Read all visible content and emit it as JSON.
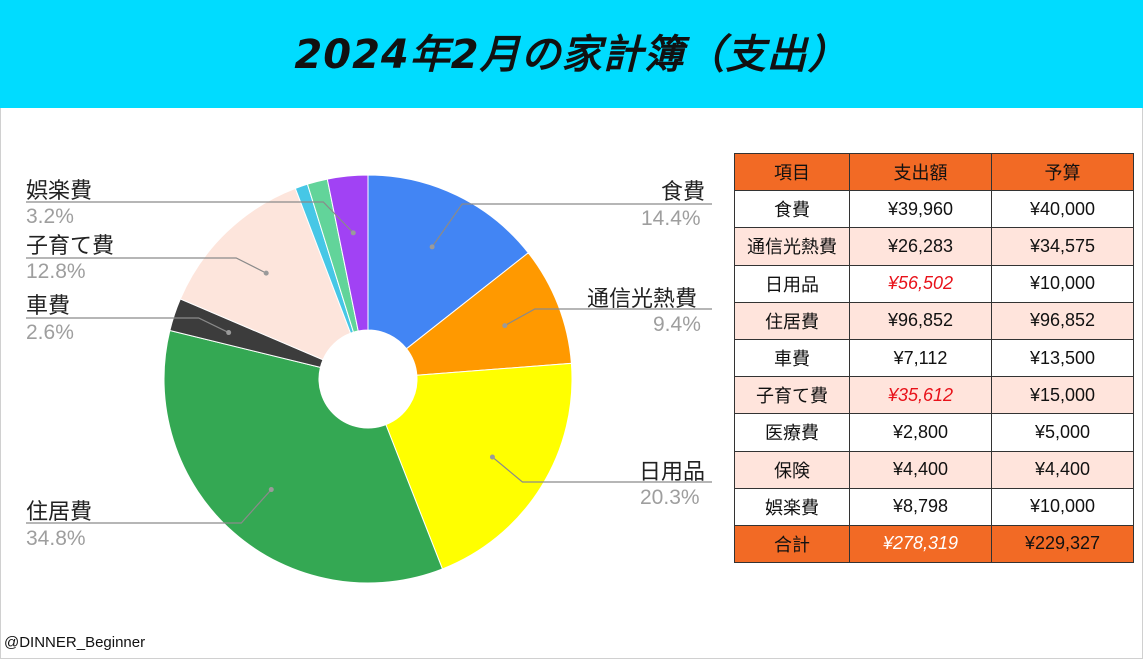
{
  "title": "2024年2月の家計簿（支出）",
  "credit": "@DINNER_Beginner",
  "chart_data": {
    "type": "pie",
    "donut": true,
    "legend": "outside-labels",
    "slices": [
      {
        "name": "食費",
        "value": 14.4,
        "label": "14.4%",
        "color": "#4285f4"
      },
      {
        "name": "通信光熱費",
        "value": 9.4,
        "label": "9.4%",
        "color": "#ff9900"
      },
      {
        "name": "日用品",
        "value": 20.3,
        "label": "20.3%",
        "color": "#ffff00"
      },
      {
        "name": "住居費",
        "value": 34.8,
        "label": "34.8%",
        "color": "#34a853"
      },
      {
        "name": "車費",
        "value": 2.6,
        "label": "2.6%",
        "color": "#3c3c3c"
      },
      {
        "name": "子育て費",
        "value": 12.8,
        "label": "12.8%",
        "color": "#fde5dc"
      },
      {
        "name": "医療費",
        "value": 1.0,
        "label": "",
        "color": "#46c7e6"
      },
      {
        "name": "保険",
        "value": 1.6,
        "label": "",
        "color": "#62d49a"
      },
      {
        "name": "娯楽費",
        "value": 3.2,
        "label": "3.2%",
        "color": "#a142f4"
      }
    ]
  },
  "table": {
    "headers": [
      "項目",
      "支出額",
      "予算"
    ],
    "rows": [
      {
        "item": "食費",
        "spent": "¥39,960",
        "budget": "¥40,000",
        "over": false
      },
      {
        "item": "通信光熱費",
        "spent": "¥26,283",
        "budget": "¥34,575",
        "over": false
      },
      {
        "item": "日用品",
        "spent": "¥56,502",
        "budget": "¥10,000",
        "over": true
      },
      {
        "item": "住居費",
        "spent": "¥96,852",
        "budget": "¥96,852",
        "over": false
      },
      {
        "item": "車費",
        "spent": "¥7,112",
        "budget": "¥13,500",
        "over": false
      },
      {
        "item": "子育て費",
        "spent": "¥35,612",
        "budget": "¥15,000",
        "over": true
      },
      {
        "item": "医療費",
        "spent": "¥2,800",
        "budget": "¥5,000",
        "over": false
      },
      {
        "item": "保険",
        "spent": "¥4,400",
        "budget": "¥4,400",
        "over": false
      },
      {
        "item": "娯楽費",
        "spent": "¥8,798",
        "budget": "¥10,000",
        "over": false
      }
    ],
    "total": {
      "item": "合計",
      "spent": "¥278,319",
      "budget": "¥229,327",
      "over": true
    }
  },
  "colors": {
    "banner": "#00dcff",
    "header": "#f26a25",
    "alt_row": "#ffe4dc",
    "over_budget": "#e8121a"
  }
}
